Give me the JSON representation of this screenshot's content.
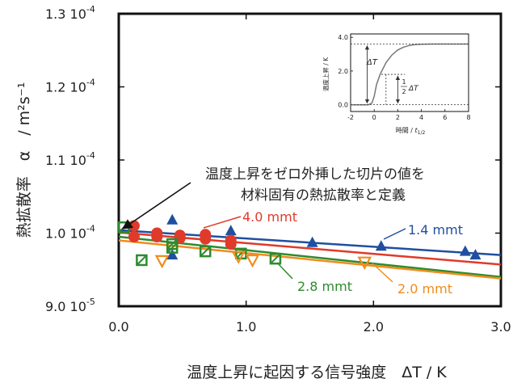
{
  "chart_data": {
    "type": "scatter",
    "xlabel": "温度上昇に起因する信号強度　ΔT / K",
    "ylabel": "熱拡散率　α　/ m²s⁻¹",
    "xlim": [
      0.0,
      3.0
    ],
    "ylim": [
      9e-05,
      0.00013
    ],
    "x_ticks": [
      "0.0",
      "1.0",
      "2.0",
      "3.0"
    ],
    "y_ticks": [
      {
        "mant": "9.0",
        "base": "10",
        "exp": "-5"
      },
      {
        "mant": "1.0",
        "base": "10",
        "exp": "-4"
      },
      {
        "mant": "1.1",
        "base": "10",
        "exp": "-4"
      },
      {
        "mant": "1.2",
        "base": "10",
        "exp": "-4"
      },
      {
        "mant": "1.3",
        "base": "10",
        "exp": "-4"
      }
    ],
    "grid": false,
    "annotation": {
      "line1": "温度上昇をゼロ外挿した切片の値を",
      "line2": "材料固有の熱拡散率と定義"
    },
    "series": [
      {
        "name": "1.4 mmt",
        "color": "#1f4fa0",
        "marker": "triangle",
        "points": [
          [
            0.42,
            0.0001018
          ],
          [
            0.42,
            9.7e-05
          ],
          [
            0.68,
            9.97e-05
          ],
          [
            0.88,
            0.0001003
          ],
          [
            1.52,
            9.87e-05
          ],
          [
            2.06,
            9.82e-05
          ],
          [
            2.72,
            9.75e-05
          ],
          [
            2.8,
            9.7e-05
          ]
        ],
        "fit": [
          [
            0.0,
            0.0001004
          ],
          [
            3.0,
            9.7e-05
          ]
        ]
      },
      {
        "name": "4.0 mmt",
        "color": "#e03a2a",
        "marker": "circle",
        "points": [
          [
            0.12,
            0.000101
          ],
          [
            0.12,
            9.95e-05
          ],
          [
            0.3,
            0.0001
          ],
          [
            0.3,
            9.95e-05
          ],
          [
            0.48,
            9.97e-05
          ],
          [
            0.48,
            9.93e-05
          ],
          [
            0.68,
            9.98e-05
          ],
          [
            0.68,
            9.92e-05
          ],
          [
            0.88,
            9.9e-05
          ],
          [
            0.88,
            9.85e-05
          ]
        ],
        "fit": [
          [
            0.0,
            0.0001001
          ],
          [
            3.0,
            9.57e-05
          ]
        ]
      },
      {
        "name": "2.8 mmt",
        "color": "#2e8b2e",
        "marker": "square-open",
        "points": [
          [
            0.04,
            0.0001008
          ],
          [
            0.18,
            9.63e-05
          ],
          [
            0.42,
            9.85e-05
          ],
          [
            0.42,
            9.8e-05
          ],
          [
            0.68,
            9.75e-05
          ],
          [
            0.96,
            9.72e-05
          ],
          [
            1.23,
            9.65e-05
          ]
        ],
        "fit": [
          [
            0.0,
            9.95e-05
          ],
          [
            3.0,
            9.4e-05
          ]
        ]
      },
      {
        "name": "2.0 mmt",
        "color": "#f08c1e",
        "marker": "triangle-down-open",
        "points": [
          [
            0.34,
            9.62e-05
          ],
          [
            0.94,
            9.68e-05
          ],
          [
            1.05,
            9.63e-05
          ],
          [
            1.93,
            9.6e-05
          ]
        ],
        "fit": [
          [
            0.0,
            9.9e-05
          ],
          [
            3.0,
            9.38e-05
          ]
        ]
      }
    ],
    "inset": {
      "type": "line",
      "xlabel_main": "時間 / ",
      "xlabel_var": "t",
      "xlabel_sub": "1/2",
      "ylabel": "温度上昇 / K",
      "xlim": [
        -2,
        8
      ],
      "ylim": [
        -0.4,
        4.2
      ],
      "x_ticks": [
        "-2",
        "0",
        "2",
        "4",
        "6",
        "8"
      ],
      "y_ticks": [
        "0.0",
        "2.0",
        "4.0"
      ],
      "plateau": 3.6,
      "curve": [
        [
          -2,
          0.0
        ],
        [
          -0.5,
          0.0
        ],
        [
          -0.2,
          0.1
        ],
        [
          0.0,
          0.5
        ],
        [
          0.2,
          1.2
        ],
        [
          0.5,
          1.8
        ],
        [
          1.0,
          2.5
        ],
        [
          1.5,
          2.95
        ],
        [
          2.0,
          3.25
        ],
        [
          2.5,
          3.42
        ],
        [
          3.0,
          3.52
        ],
        [
          3.5,
          3.57
        ],
        [
          4.0,
          3.59
        ],
        [
          5.0,
          3.6
        ],
        [
          8.0,
          3.6
        ]
      ],
      "dT_label": "ΔT",
      "half_num": "1",
      "half_den": "2",
      "half_var": "ΔT"
    }
  }
}
